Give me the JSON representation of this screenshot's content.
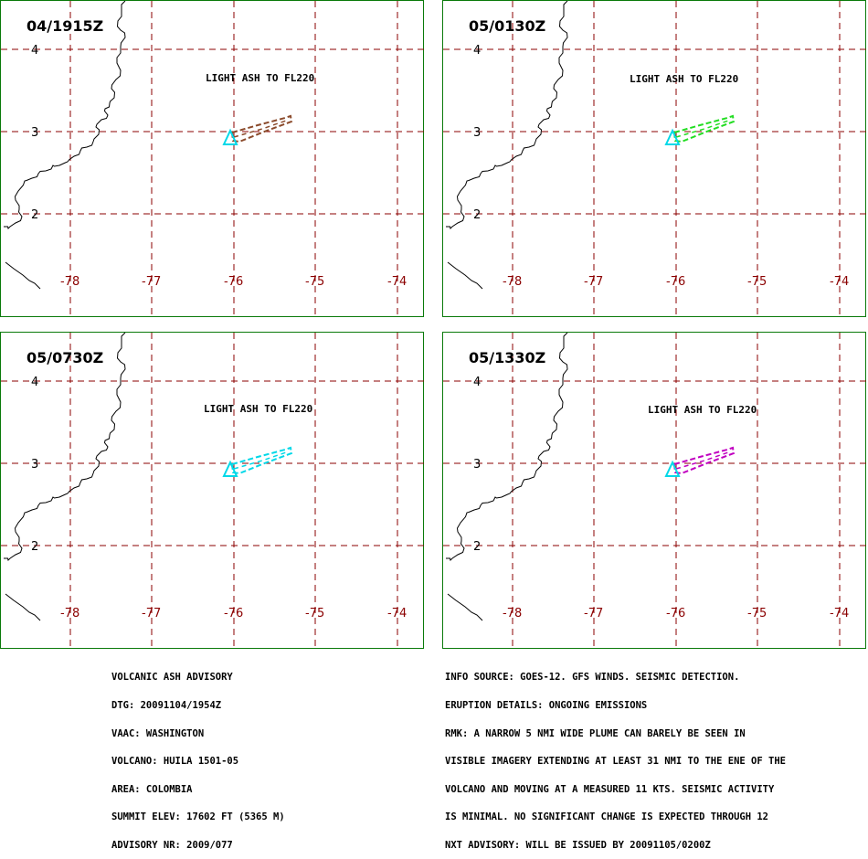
{
  "colors": {
    "border": "#0a7a0a",
    "grid": "#8b0000",
    "coast": "#000000",
    "volcano": "#00d8e8"
  },
  "panels": [
    {
      "timestamp": "04/1915Z",
      "label": "LIGHT ASH TO FL220",
      "label_color": "#800080",
      "plume_color": "#8b4a2b"
    },
    {
      "timestamp": "05/0130Z",
      "label": "LIGHT ASH TO FL220",
      "label_color": "#f0f000",
      "plume_color": "#22dd22"
    },
    {
      "timestamp": "05/0730Z",
      "label": "LIGHT ASH TO FL220",
      "label_color": "#800080",
      "plume_color": "#00d8e8"
    },
    {
      "timestamp": "05/1330Z",
      "label": "LIGHT ASH TO FL220",
      "label_color": "#800080",
      "plume_color": "#c000c0"
    }
  ],
  "grid": {
    "lon_labels": [
      "-78",
      "-77",
      "-76",
      "-75",
      "-74"
    ],
    "lat_labels": [
      "4",
      "3",
      "2"
    ]
  },
  "advisory_left": [
    "VOLCANIC ASH ADVISORY",
    "DTG: 20091104/1954Z",
    "VAAC: WASHINGTON",
    "VOLCANO: HUILA 1501-05",
    "AREA: COLOMBIA",
    "SUMMIT ELEV: 17602 FT (5365 M)",
    "ADVISORY NR: 2009/077"
  ],
  "advisory_right": [
    "INFO SOURCE: GOES-12. GFS WINDS. SEISMIC DETECTION.",
    "ERUPTION DETAILS: ONGOING EMISSIONS",
    "RMK: A NARROW 5 NMI WIDE PLUME CAN BARELY BE SEEN IN",
    "VISIBLE IMAGERY EXTENDING AT LEAST 31 NMI TO THE ENE OF THE",
    "VOLCANO AND MOVING AT A MEASURED 11 KTS. SEISMIC ACTIVITY",
    "IS MINIMAL. NO SIGNIFICANT CHANGE IS EXPECTED THROUGH 12",
    "NXT ADVISORY: WILL BE ISSUED BY 20091105/0200Z"
  ]
}
